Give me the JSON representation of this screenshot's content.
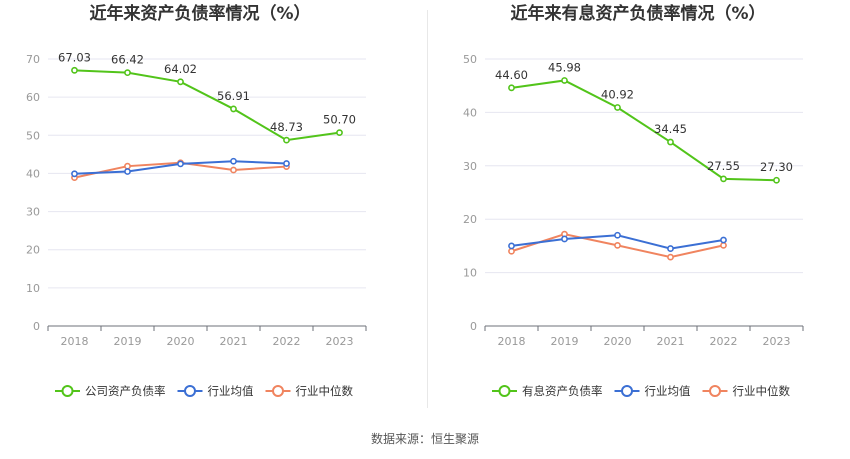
{
  "source_prefix": "数据来源：",
  "source_name": "恒生聚源",
  "chart_data": [
    {
      "type": "line",
      "title": "近年来资产负债率情况（%）",
      "x": [
        "2018",
        "2019",
        "2020",
        "2021",
        "2022",
        "2023"
      ],
      "ylim": [
        0,
        70
      ],
      "yticks": [
        0,
        10,
        20,
        30,
        40,
        50,
        60,
        70
      ],
      "grid": true,
      "legend_position": "bottom",
      "series": [
        {
          "name": "公司资产负债率",
          "color": "#52c41a",
          "values": [
            67.03,
            66.42,
            64.02,
            56.91,
            48.73,
            50.7
          ],
          "labels": [
            "67.03",
            "66.42",
            "64.02",
            "56.91",
            "48.73",
            "50.70"
          ]
        },
        {
          "name": "行业均值",
          "color": "#3b6fd4",
          "values": [
            39.9,
            40.5,
            42.5,
            43.2,
            42.6,
            null
          ]
        },
        {
          "name": "行业中位数",
          "color": "#f0845f",
          "values": [
            38.9,
            41.9,
            42.8,
            40.9,
            41.8,
            null
          ]
        }
      ]
    },
    {
      "type": "line",
      "title": "近年来有息资产负债率情况（%）",
      "x": [
        "2018",
        "2019",
        "2020",
        "2021",
        "2022",
        "2023"
      ],
      "ylim": [
        0,
        50
      ],
      "yticks": [
        0,
        10,
        20,
        30,
        40,
        50
      ],
      "grid": true,
      "legend_position": "bottom",
      "series": [
        {
          "name": "有息资产负债率",
          "color": "#52c41a",
          "values": [
            44.6,
            45.98,
            40.92,
            34.45,
            27.55,
            27.3
          ],
          "labels": [
            "44.60",
            "45.98",
            "40.92",
            "34.45",
            "27.55",
            "27.30"
          ]
        },
        {
          "name": "行业均值",
          "color": "#3b6fd4",
          "values": [
            15.0,
            16.3,
            17.0,
            14.5,
            16.1,
            null
          ]
        },
        {
          "name": "行业中位数",
          "color": "#f0845f",
          "values": [
            14.0,
            17.2,
            15.1,
            12.9,
            15.1,
            null
          ]
        }
      ]
    }
  ]
}
